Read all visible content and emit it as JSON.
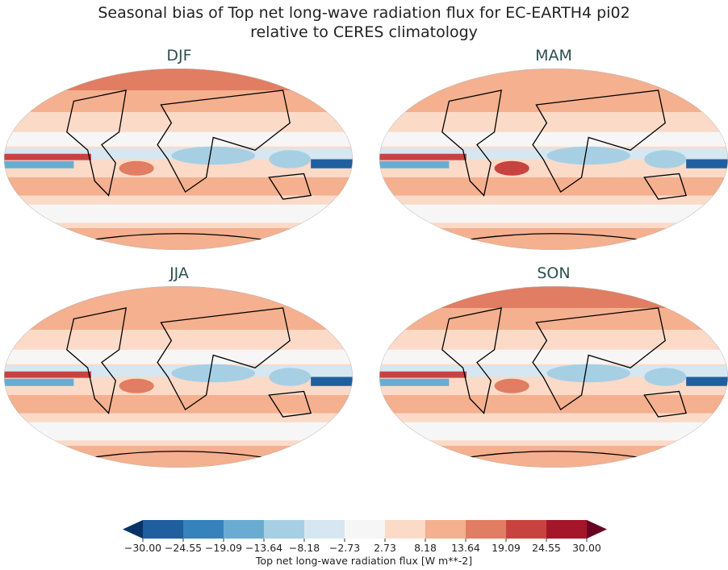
{
  "title_line1": "Seasonal bias of Top net long-wave radiation flux for EC-EARTH4 pi02",
  "title_line2": "relative to CERES climatology",
  "panels": [
    {
      "label": "DJF"
    },
    {
      "label": "MAM"
    },
    {
      "label": "JJA"
    },
    {
      "label": "SON"
    }
  ],
  "colorbar": {
    "label": "Top net long-wave radiation flux [W m**-2]",
    "ticks": [
      "−30.00",
      "−24.55",
      "−19.09",
      "−13.64",
      "−8.18",
      "−2.73",
      "2.73",
      "8.18",
      "13.64",
      "19.09",
      "24.55",
      "30.00"
    ],
    "colors": [
      "#1f5fa0",
      "#3682bd",
      "#6aacd1",
      "#a7cfe4",
      "#d6e7f1",
      "#f6f6f6",
      "#fbdac8",
      "#f4b08f",
      "#e17d62",
      "#c8433f",
      "#a5162a"
    ],
    "extend_low_color": "#083366",
    "extend_high_color": "#6b0122"
  }
}
